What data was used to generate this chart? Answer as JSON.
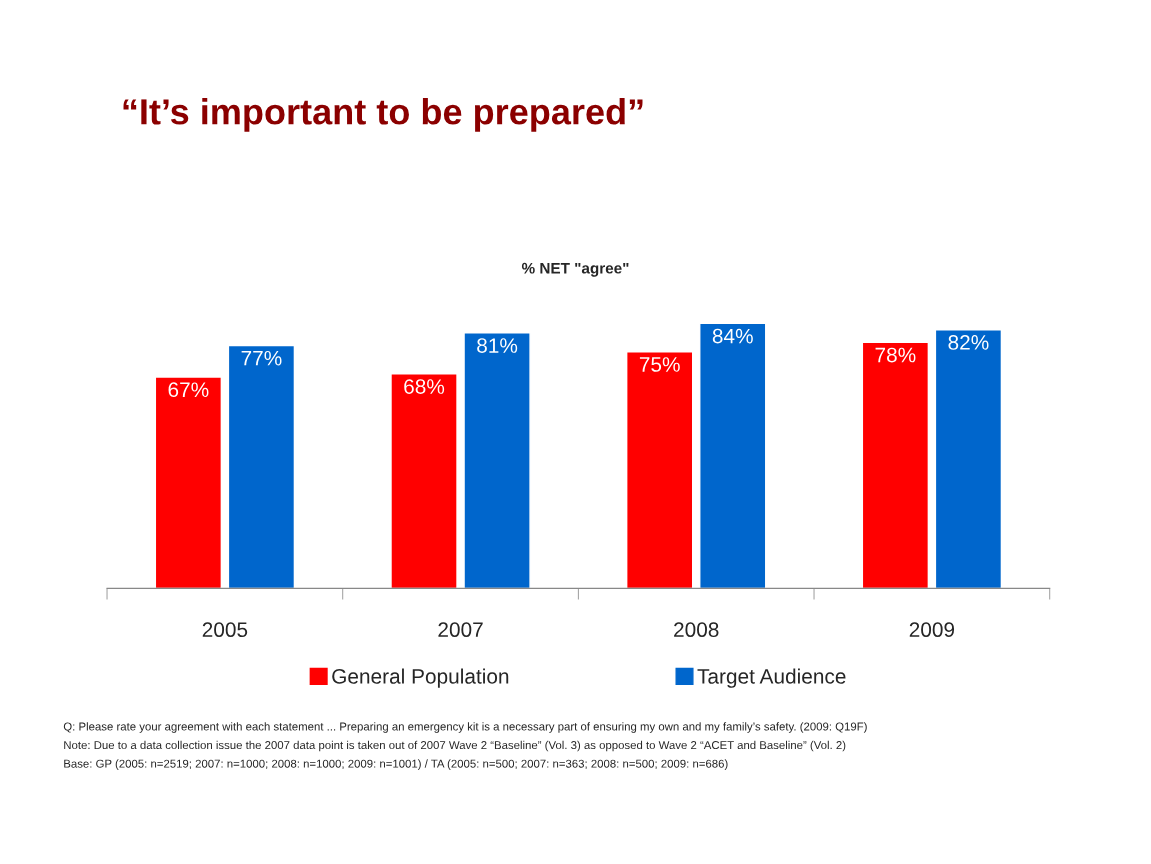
{
  "chart_data": {
    "type": "bar",
    "title": "“It’s important to be prepared”",
    "subtitle": "% NET \"agree\"",
    "categories": [
      "2005",
      "2007",
      "2008",
      "2009"
    ],
    "series": [
      {
        "name": "General Population",
        "color": "#ff0000",
        "values": [
          67,
          68,
          75,
          78
        ],
        "value_labels": [
          "67%",
          "68%",
          "75%",
          "78%"
        ]
      },
      {
        "name": "Target Audience",
        "color": "#0066cc",
        "values": [
          77,
          81,
          84,
          82
        ],
        "value_labels": [
          "77%",
          "81%",
          "84%",
          "82%"
        ]
      }
    ],
    "tick_labels": "x",
    "grid": false,
    "legend": "bottom",
    "annotations": [
      "Q: Please rate your agreement with each statement ... Preparing an emergency kit is a necessary part of ensuring my own and my family’s safety. (2009: Q19F)",
      "Note: Due to a data collection issue the 2007 data point is taken out of 2007 Wave 2 “Baseline” (Vol. 3) as opposed to Wave 2 “ACET and Baseline” (Vol. 2)",
      "Base: GP (2005: n=2519; 2007: n=1000; 2008: n=1000; 2009: n=1001) / TA (2005: n=500; 2007: n=363; 2008: n=500; 2009: n=686)"
    ]
  }
}
